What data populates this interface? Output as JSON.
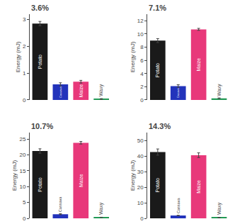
{
  "chart_data": [
    {
      "type": "bar",
      "title": "3.6%",
      "ylabel": "Energy (mJ)",
      "categories": [
        "Potato",
        "Cassava",
        "Maize",
        "Waxy"
      ],
      "values": [
        2.85,
        0.58,
        0.68,
        0.03
      ],
      "errors": [
        0.08,
        0.06,
        0.05,
        0.02
      ],
      "colors": [
        "#1a1a1a",
        "#2233bb",
        "#e8387a",
        "#229955"
      ],
      "ylim": [
        0,
        3.2
      ],
      "yticks": [
        0,
        1,
        2,
        3
      ],
      "grid": false,
      "tick_labels": "y"
    },
    {
      "type": "bar",
      "title": "7.1%",
      "ylabel": "Energy (mJ)",
      "categories": [
        "Potato",
        "Cassava",
        "Maize",
        "Waxy"
      ],
      "values": [
        9.0,
        2.1,
        10.7,
        0.25
      ],
      "errors": [
        0.3,
        0.2,
        0.15,
        0.05
      ],
      "colors": [
        "#1a1a1a",
        "#2233bb",
        "#e8387a",
        "#229955"
      ],
      "ylim": [
        0,
        13
      ],
      "yticks": [
        0,
        2,
        4,
        6,
        8,
        10,
        12
      ],
      "grid": false,
      "tick_labels": "y"
    },
    {
      "type": "bar",
      "title": "10.7%",
      "ylabel": "Energy (mJ)",
      "categories": [
        "Potato",
        "Cassava",
        "Maize",
        "Waxy"
      ],
      "values": [
        21.2,
        1.3,
        23.8,
        0.3
      ],
      "errors": [
        0.7,
        0.15,
        0.4,
        0.05
      ],
      "colors": [
        "#1a1a1a",
        "#2233bb",
        "#e8387a",
        "#229955"
      ],
      "ylim": [
        0,
        27
      ],
      "yticks": [
        0,
        5,
        10,
        15,
        20,
        25
      ],
      "grid": false,
      "tick_labels": "y"
    },
    {
      "type": "bar",
      "title": "14.3%",
      "ylabel": "Energy (mJ)",
      "categories": [
        "Potato",
        "Cassava",
        "Maize",
        "Waxy"
      ],
      "values": [
        42.5,
        1.8,
        40.5,
        0.5
      ],
      "errors": [
        2.0,
        0.15,
        1.5,
        0.1
      ],
      "colors": [
        "#1a1a1a",
        "#2233bb",
        "#e8387a",
        "#229955"
      ],
      "ylim": [
        0,
        55
      ],
      "yticks": [
        0,
        10,
        20,
        30,
        40,
        50
      ],
      "grid": false,
      "tick_labels": "y"
    }
  ]
}
